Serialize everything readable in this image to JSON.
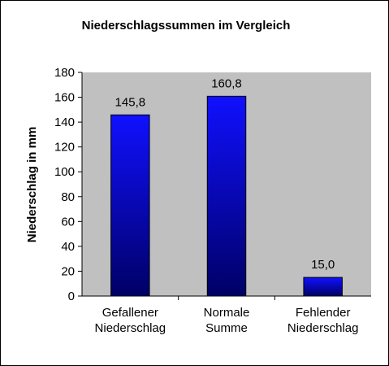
{
  "chart_data": {
    "type": "bar",
    "title": "Niederschlagssummen  im Vergleich",
    "xlabel": "",
    "ylabel": "Niederschlag in mm",
    "categories": [
      [
        "Gefallener",
        "Niederschlag"
      ],
      [
        "Normale",
        "Summe"
      ],
      [
        "Fehlender",
        "Niederschlag"
      ]
    ],
    "values": [
      145.8,
      160.8,
      15.0
    ],
    "value_labels": [
      "145,8",
      "160,8",
      "15,0"
    ],
    "ylim": [
      0,
      180
    ],
    "yticks": [
      0,
      20,
      40,
      60,
      80,
      100,
      120,
      140,
      160,
      180
    ],
    "grid": false,
    "legend": "none",
    "colors": {
      "plot_background": "#c0c0c0",
      "bar_top": "#1010ff",
      "bar_bottom": "#000066",
      "bar_border": "#000000"
    }
  }
}
